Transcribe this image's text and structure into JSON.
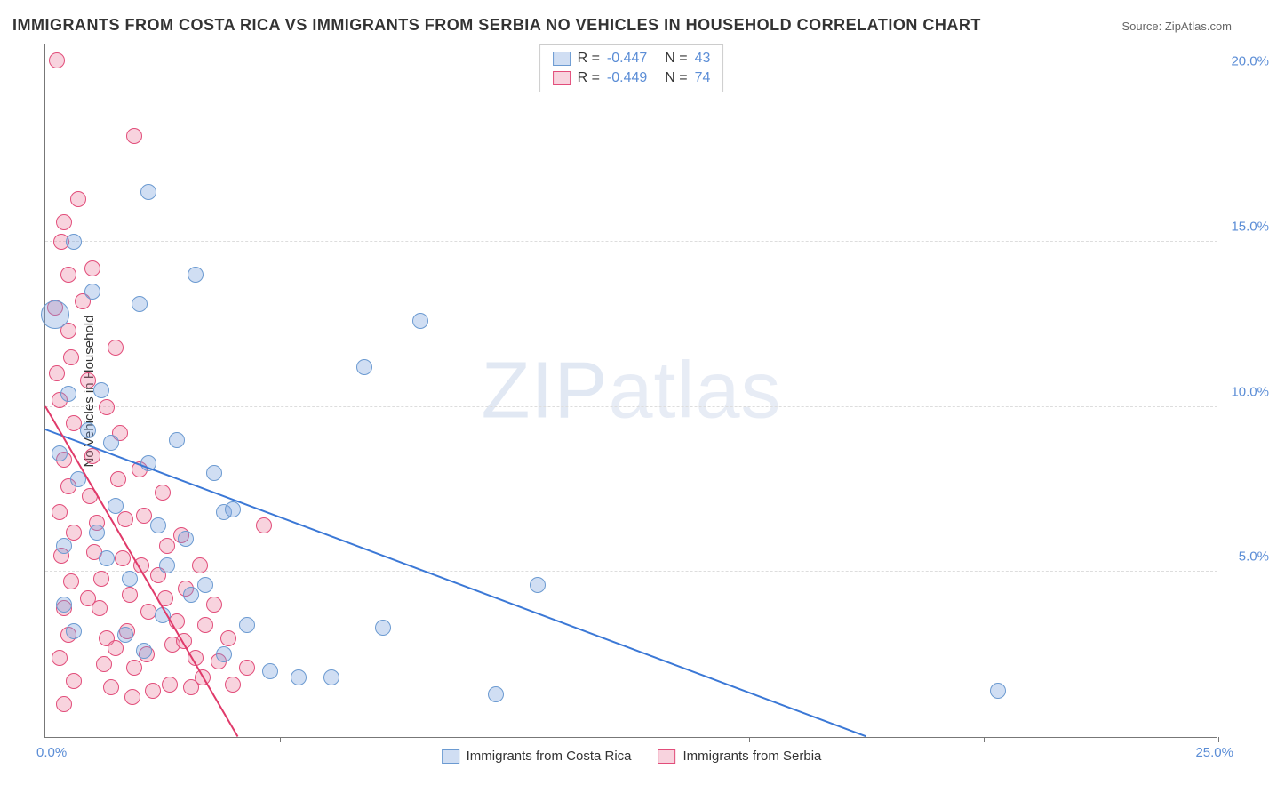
{
  "title": "IMMIGRANTS FROM COSTA RICA VS IMMIGRANTS FROM SERBIA NO VEHICLES IN HOUSEHOLD CORRELATION CHART",
  "source": "Source: ZipAtlas.com",
  "watermark": {
    "part1": "ZIP",
    "part2": "atlas"
  },
  "chart": {
    "type": "scatter",
    "ylabel": "No Vehicles in Household",
    "xlim": [
      0,
      25
    ],
    "ylim": [
      0,
      21
    ],
    "x_ticks": [
      0,
      5,
      10,
      15,
      20,
      25
    ],
    "y_grid": [
      5,
      10,
      15,
      20
    ],
    "y_tick_labels": [
      "5.0%",
      "10.0%",
      "15.0%",
      "20.0%"
    ],
    "x_origin_label": "0.0%",
    "x_max_label": "25.0%",
    "background_color": "#ffffff",
    "grid_color": "#dddddd",
    "axis_color": "#777777",
    "series": [
      {
        "name": "Immigrants from Costa Rica",
        "fill": "rgba(120,160,220,0.35)",
        "stroke": "#6b9ad1",
        "line_color": "#3b78d6",
        "r_default": 9,
        "points": [
          {
            "x": 0.2,
            "y": 12.8,
            "r": 16
          },
          {
            "x": 0.6,
            "y": 15.0
          },
          {
            "x": 0.5,
            "y": 10.4
          },
          {
            "x": 0.7,
            "y": 7.8
          },
          {
            "x": 0.4,
            "y": 5.8
          },
          {
            "x": 1.0,
            "y": 13.5
          },
          {
            "x": 1.2,
            "y": 10.5
          },
          {
            "x": 1.4,
            "y": 8.9
          },
          {
            "x": 1.5,
            "y": 7.0
          },
          {
            "x": 1.7,
            "y": 3.1
          },
          {
            "x": 2.2,
            "y": 16.5
          },
          {
            "x": 2.2,
            "y": 8.3
          },
          {
            "x": 2.0,
            "y": 13.1
          },
          {
            "x": 2.4,
            "y": 6.4
          },
          {
            "x": 2.8,
            "y": 9.0
          },
          {
            "x": 2.5,
            "y": 3.7
          },
          {
            "x": 3.0,
            "y": 6.0
          },
          {
            "x": 3.2,
            "y": 14.0
          },
          {
            "x": 3.4,
            "y": 4.6
          },
          {
            "x": 3.6,
            "y": 8.0
          },
          {
            "x": 3.8,
            "y": 6.8
          },
          {
            "x": 3.8,
            "y": 2.5
          },
          {
            "x": 4.0,
            "y": 6.9
          },
          {
            "x": 4.3,
            "y": 3.4
          },
          {
            "x": 4.8,
            "y": 2.0
          },
          {
            "x": 5.4,
            "y": 1.8
          },
          {
            "x": 6.1,
            "y": 1.8
          },
          {
            "x": 6.8,
            "y": 11.2
          },
          {
            "x": 7.2,
            "y": 3.3
          },
          {
            "x": 8.0,
            "y": 12.6
          },
          {
            "x": 9.6,
            "y": 1.3
          },
          {
            "x": 10.5,
            "y": 4.6
          },
          {
            "x": 1.1,
            "y": 6.2
          },
          {
            "x": 1.8,
            "y": 4.8
          },
          {
            "x": 2.6,
            "y": 5.2
          },
          {
            "x": 0.9,
            "y": 9.3
          },
          {
            "x": 0.3,
            "y": 8.6
          },
          {
            "x": 20.3,
            "y": 1.4
          },
          {
            "x": 3.1,
            "y": 4.3
          },
          {
            "x": 2.1,
            "y": 2.6
          },
          {
            "x": 1.3,
            "y": 5.4
          },
          {
            "x": 0.6,
            "y": 3.2
          },
          {
            "x": 0.4,
            "y": 4.0
          }
        ],
        "trend": {
          "x1": 0,
          "y1": 9.3,
          "x2": 17.5,
          "y2": 0
        },
        "R": "-0.447",
        "N": "43"
      },
      {
        "name": "Immigrants from Serbia",
        "fill": "rgba(235,130,160,0.35)",
        "stroke": "#e24d7a",
        "line_color": "#e03a6a",
        "r_default": 9,
        "points": [
          {
            "x": 0.25,
            "y": 20.5
          },
          {
            "x": 0.4,
            "y": 15.6
          },
          {
            "x": 0.35,
            "y": 15.0
          },
          {
            "x": 0.5,
            "y": 14.0
          },
          {
            "x": 0.5,
            "y": 12.3
          },
          {
            "x": 0.55,
            "y": 11.5
          },
          {
            "x": 0.3,
            "y": 10.2
          },
          {
            "x": 0.6,
            "y": 9.5
          },
          {
            "x": 0.4,
            "y": 8.4
          },
          {
            "x": 0.5,
            "y": 7.6
          },
          {
            "x": 0.3,
            "y": 6.8
          },
          {
            "x": 0.6,
            "y": 6.2
          },
          {
            "x": 0.35,
            "y": 5.5
          },
          {
            "x": 0.55,
            "y": 4.7
          },
          {
            "x": 0.4,
            "y": 3.9
          },
          {
            "x": 0.5,
            "y": 3.1
          },
          {
            "x": 0.3,
            "y": 2.4
          },
          {
            "x": 0.6,
            "y": 1.7
          },
          {
            "x": 0.4,
            "y": 1.0
          },
          {
            "x": 0.8,
            "y": 13.2
          },
          {
            "x": 0.9,
            "y": 10.8
          },
          {
            "x": 1.0,
            "y": 8.5
          },
          {
            "x": 0.95,
            "y": 7.3
          },
          {
            "x": 1.1,
            "y": 6.5
          },
          {
            "x": 1.05,
            "y": 5.6
          },
          {
            "x": 1.2,
            "y": 4.8
          },
          {
            "x": 1.15,
            "y": 3.9
          },
          {
            "x": 1.3,
            "y": 3.0
          },
          {
            "x": 1.25,
            "y": 2.2
          },
          {
            "x": 1.4,
            "y": 1.5
          },
          {
            "x": 1.5,
            "y": 11.8
          },
          {
            "x": 1.6,
            "y": 9.2
          },
          {
            "x": 1.55,
            "y": 7.8
          },
          {
            "x": 1.7,
            "y": 6.6
          },
          {
            "x": 1.65,
            "y": 5.4
          },
          {
            "x": 1.8,
            "y": 4.3
          },
          {
            "x": 1.75,
            "y": 3.2
          },
          {
            "x": 1.9,
            "y": 2.1
          },
          {
            "x": 1.85,
            "y": 1.2
          },
          {
            "x": 2.0,
            "y": 8.1
          },
          {
            "x": 2.1,
            "y": 6.7
          },
          {
            "x": 2.05,
            "y": 5.2
          },
          {
            "x": 2.2,
            "y": 3.8
          },
          {
            "x": 2.15,
            "y": 2.5
          },
          {
            "x": 2.3,
            "y": 1.4
          },
          {
            "x": 2.5,
            "y": 7.4
          },
          {
            "x": 2.6,
            "y": 5.8
          },
          {
            "x": 2.55,
            "y": 4.2
          },
          {
            "x": 2.7,
            "y": 2.8
          },
          {
            "x": 2.65,
            "y": 1.6
          },
          {
            "x": 2.9,
            "y": 6.1
          },
          {
            "x": 3.0,
            "y": 4.5
          },
          {
            "x": 2.95,
            "y": 2.9
          },
          {
            "x": 3.1,
            "y": 1.5
          },
          {
            "x": 3.3,
            "y": 5.2
          },
          {
            "x": 3.4,
            "y": 3.4
          },
          {
            "x": 3.35,
            "y": 1.8
          },
          {
            "x": 3.6,
            "y": 4.0
          },
          {
            "x": 3.7,
            "y": 2.3
          },
          {
            "x": 3.9,
            "y": 3.0
          },
          {
            "x": 4.0,
            "y": 1.6
          },
          {
            "x": 4.3,
            "y": 2.1
          },
          {
            "x": 4.65,
            "y": 6.4
          },
          {
            "x": 1.9,
            "y": 18.2
          },
          {
            "x": 0.7,
            "y": 16.3
          },
          {
            "x": 1.0,
            "y": 14.2
          },
          {
            "x": 1.3,
            "y": 10.0
          },
          {
            "x": 0.2,
            "y": 13.0
          },
          {
            "x": 0.25,
            "y": 11.0
          },
          {
            "x": 2.4,
            "y": 4.9
          },
          {
            "x": 2.8,
            "y": 3.5
          },
          {
            "x": 3.2,
            "y": 2.4
          },
          {
            "x": 1.5,
            "y": 2.7
          },
          {
            "x": 0.9,
            "y": 4.2
          }
        ],
        "trend": {
          "x1": 0,
          "y1": 10.0,
          "x2": 4.1,
          "y2": 0
        },
        "R": "-0.449",
        "N": "74"
      }
    ]
  },
  "legend_bottom": [
    {
      "label": "Immigrants from Costa Rica",
      "fill": "rgba(120,160,220,0.35)",
      "stroke": "#6b9ad1"
    },
    {
      "label": "Immigrants from Serbia",
      "fill": "rgba(235,130,160,0.35)",
      "stroke": "#e24d7a"
    }
  ]
}
